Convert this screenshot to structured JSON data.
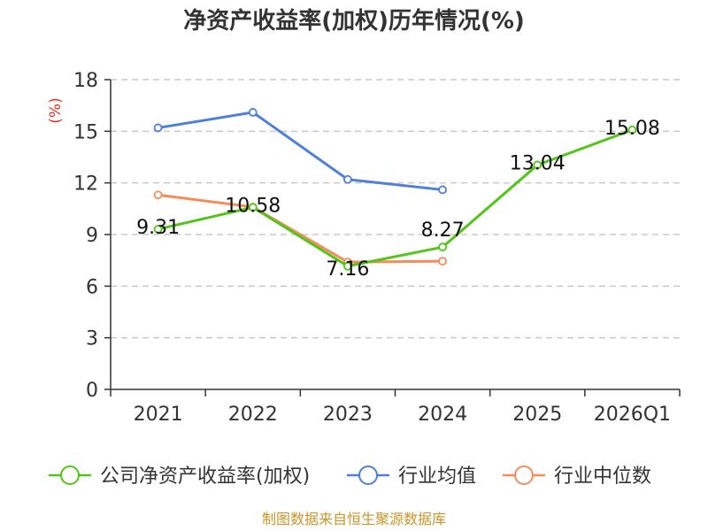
{
  "chart_data": {
    "type": "line",
    "title": "净资产收益率(加权)历年情况(%)",
    "ylabel": "(%)",
    "xlabel": "",
    "categories": [
      "2021",
      "2022",
      "2023",
      "2024",
      "2025",
      "2026Q1"
    ],
    "ylim": [
      0,
      18
    ],
    "yticks": [
      0,
      3,
      6,
      9,
      12,
      15,
      18
    ],
    "grid": true,
    "legend_position": "bottom",
    "series": [
      {
        "name": "公司净资产收益率(加权)",
        "color": "#52c41a",
        "values": [
          9.31,
          10.58,
          7.16,
          8.27,
          13.04,
          15.08
        ],
        "labels": [
          "9.31",
          "10.58",
          "7.16",
          "8.27",
          "13.04",
          "15.08"
        ]
      },
      {
        "name": "行业均值",
        "color": "#4e7fd9",
        "values": [
          15.2,
          16.1,
          12.2,
          11.6,
          null,
          null
        ]
      },
      {
        "name": "行业中位数",
        "color": "#f58d5a",
        "values": [
          11.3,
          10.6,
          7.4,
          7.45,
          null,
          null
        ]
      }
    ]
  },
  "colors": {
    "axis": "#333333",
    "grid": "#c8c8c8",
    "ylabel": "#e0301e",
    "source": "#c8962a"
  },
  "source_text": "制图数据来自恒生聚源数据库"
}
